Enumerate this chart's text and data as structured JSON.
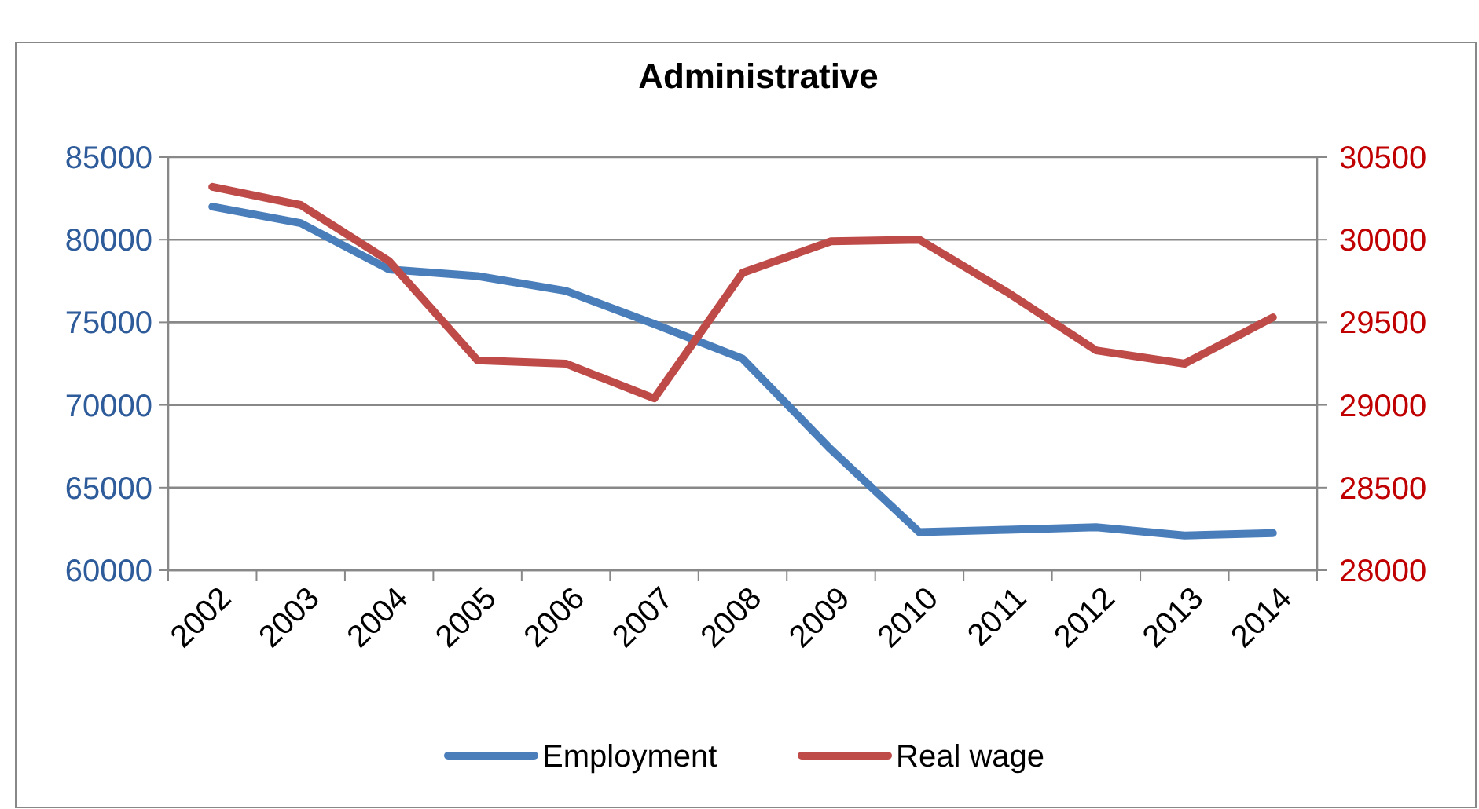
{
  "chart_data": {
    "type": "line",
    "title": "Administrative",
    "categories": [
      "2002",
      "2003",
      "2004",
      "2005",
      "2006",
      "2007",
      "2008",
      "2009",
      "2010",
      "2011",
      "2012",
      "2013",
      "2014"
    ],
    "series": [
      {
        "name": "Employment",
        "color": "#4a7ebb",
        "values": [
          82000,
          81000,
          78200,
          77800,
          76900,
          74900,
          72800,
          67300,
          62300,
          62450,
          62600,
          62100,
          62250
        ]
      },
      {
        "name": "Real wage",
        "color": "#be4b48",
        "axis": "y2",
        "values": [
          30320,
          30210,
          29870,
          29270,
          29250,
          29040,
          29800,
          29990,
          30000,
          29680,
          29330,
          29250,
          29530
        ]
      }
    ],
    "ylim": [
      60000,
      85000
    ],
    "yticks": [
      60000,
      65000,
      70000,
      75000,
      80000,
      85000
    ],
    "y2lim": [
      28000,
      30500
    ],
    "y2ticks": [
      28000,
      28500,
      29000,
      29500,
      30000,
      30500
    ],
    "grid": "y",
    "legend": "bottom",
    "marker": "none",
    "line_style": "solid"
  }
}
